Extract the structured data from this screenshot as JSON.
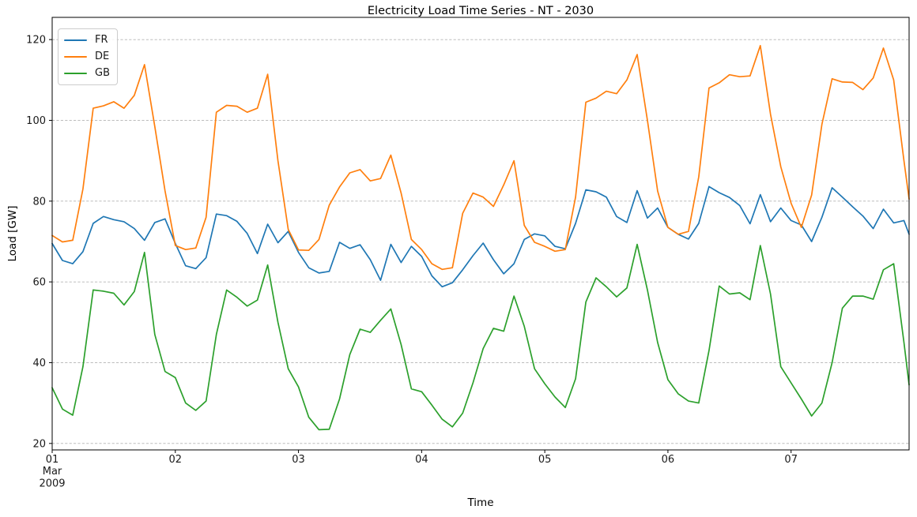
{
  "figure": {
    "title": "Electricity Load Time Series - NT - 2030"
  },
  "chart_data": {
    "type": "line",
    "title": "Electricity Load Time Series - NT - 2030",
    "xlabel": "Time",
    "ylabel": "Load [GW]",
    "x_unit": "hours since Mar 01 2009 00:00",
    "xlim": [
      0,
      167
    ],
    "ylim": [
      18.4,
      125.5
    ],
    "yticks": [
      20,
      40,
      60,
      80,
      100,
      120
    ],
    "xticks": [
      {
        "hour": 0,
        "label": "01",
        "sublines": [
          "Mar",
          "2009"
        ]
      },
      {
        "hour": 24,
        "label": "02",
        "sublines": []
      },
      {
        "hour": 48,
        "label": "03",
        "sublines": []
      },
      {
        "hour": 72,
        "label": "04",
        "sublines": []
      },
      {
        "hour": 96,
        "label": "05",
        "sublines": []
      },
      {
        "hour": 120,
        "label": "06",
        "sublines": []
      },
      {
        "hour": 144,
        "label": "07",
        "sublines": []
      }
    ],
    "grid": "horizontal-dashed",
    "grid_color": "#b3b3b3",
    "legend_position": "upper-left",
    "x": [
      0,
      2,
      4,
      6,
      8,
      10,
      12,
      14,
      16,
      18,
      20,
      22,
      24,
      26,
      28,
      30,
      32,
      34,
      36,
      38,
      40,
      42,
      44,
      46,
      48,
      50,
      52,
      54,
      56,
      58,
      60,
      62,
      64,
      66,
      68,
      70,
      72,
      74,
      76,
      78,
      80,
      82,
      84,
      86,
      88,
      90,
      92,
      94,
      96,
      98,
      100,
      102,
      104,
      106,
      108,
      110,
      112,
      114,
      116,
      118,
      120,
      122,
      124,
      126,
      128,
      130,
      132,
      134,
      136,
      138,
      140,
      142,
      144,
      146,
      148,
      150,
      152,
      154,
      156,
      158,
      160,
      162,
      164,
      166,
      167
    ],
    "series": [
      {
        "name": "FR",
        "color": "#1f77b4",
        "values": [
          69.5,
          65.3,
          64.5,
          67.5,
          74.5,
          76.2,
          75.4,
          74.9,
          73.2,
          70.3,
          74.7,
          75.6,
          69.5,
          64.0,
          63.3,
          66.0,
          76.8,
          76.4,
          75.0,
          72.0,
          67.0,
          74.3,
          69.7,
          72.5,
          67.3,
          63.5,
          62.2,
          62.6,
          69.8,
          68.3,
          69.2,
          65.5,
          60.4,
          69.3,
          64.8,
          68.8,
          66.3,
          61.5,
          58.8,
          59.8,
          63.0,
          66.5,
          69.6,
          65.5,
          62.0,
          64.5,
          70.5,
          71.9,
          71.4,
          68.8,
          68.2,
          74.5,
          82.8,
          82.3,
          81.0,
          76.2,
          74.7,
          82.6,
          75.8,
          78.3,
          73.5,
          71.8,
          70.6,
          74.5,
          83.6,
          82.1,
          80.9,
          78.9,
          74.4,
          81.6,
          74.9,
          78.3,
          75.2,
          74.1,
          70.0,
          76.0,
          83.3,
          81.0,
          78.6,
          76.3,
          73.2,
          78.0,
          74.6,
          75.2,
          71.8
        ]
      },
      {
        "name": "DE",
        "color": "#ff7f0e",
        "values": [
          71.5,
          69.9,
          70.3,
          83.0,
          103.0,
          103.6,
          104.6,
          103.0,
          106.2,
          113.8,
          98.5,
          82.5,
          69.0,
          68.0,
          68.4,
          76.0,
          102.0,
          103.7,
          103.5,
          102.0,
          103.0,
          111.4,
          90.0,
          73.0,
          67.9,
          67.8,
          70.5,
          79.0,
          83.5,
          87.0,
          87.8,
          85.0,
          85.6,
          91.4,
          82.0,
          70.5,
          68.0,
          64.5,
          63.1,
          63.5,
          77.0,
          82.0,
          81.0,
          78.7,
          84.0,
          90.0,
          74.0,
          69.8,
          68.8,
          67.6,
          68.0,
          81.0,
          104.5,
          105.5,
          107.2,
          106.6,
          110.0,
          116.3,
          100.0,
          82.5,
          73.5,
          71.8,
          72.5,
          86.0,
          108.0,
          109.3,
          111.3,
          110.8,
          111.0,
          118.5,
          101.5,
          88.5,
          79.5,
          73.5,
          81.5,
          99.0,
          110.3,
          109.5,
          109.4,
          107.6,
          110.5,
          117.9,
          110.0,
          90.0,
          80.5
        ]
      },
      {
        "name": "GB",
        "color": "#2ca02c",
        "values": [
          33.8,
          28.5,
          27.0,
          39.0,
          58.0,
          57.7,
          57.2,
          54.3,
          57.6,
          67.3,
          47.0,
          37.8,
          36.3,
          30.0,
          28.2,
          30.5,
          47.0,
          58.0,
          56.2,
          54.0,
          55.5,
          64.2,
          50.0,
          38.5,
          34.0,
          26.5,
          23.4,
          23.5,
          31.0,
          42.0,
          48.3,
          47.5,
          50.5,
          53.3,
          44.5,
          33.5,
          32.8,
          29.5,
          26.0,
          24.1,
          27.5,
          35.0,
          43.5,
          48.5,
          47.8,
          56.5,
          49.0,
          38.5,
          34.8,
          31.5,
          28.9,
          36.0,
          55.0,
          61.0,
          58.8,
          56.3,
          58.5,
          69.3,
          58.0,
          45.0,
          35.8,
          32.3,
          30.5,
          30.0,
          43.0,
          59.0,
          57.0,
          57.3,
          55.6,
          69.0,
          57.0,
          39.0,
          35.0,
          31.0,
          26.8,
          30.0,
          40.0,
          53.5,
          56.5,
          56.5,
          55.7,
          63.0,
          64.5,
          45.0,
          34.5
        ]
      }
    ]
  }
}
